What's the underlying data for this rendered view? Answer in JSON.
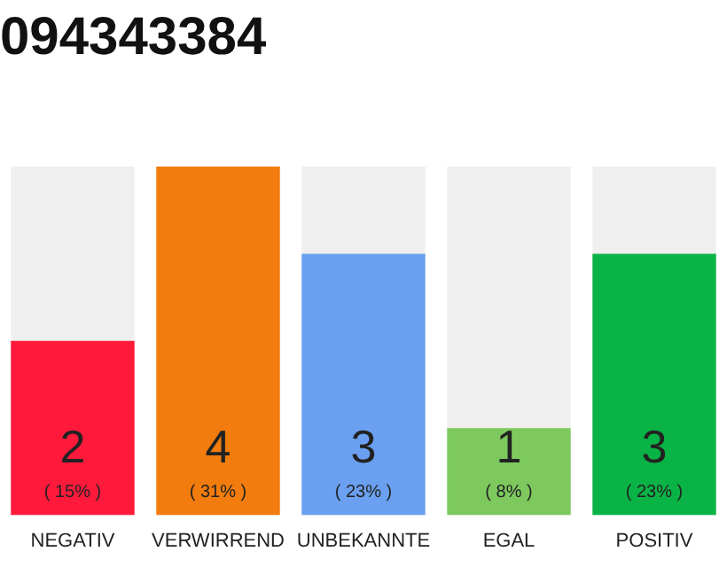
{
  "chart_data": {
    "type": "bar",
    "title": "094343384",
    "categories": [
      "NEGATIV",
      "VERWIRREND",
      "UNBEKANNTE",
      "EGAL",
      "POSITIV"
    ],
    "values": [
      2,
      4,
      3,
      1,
      3
    ],
    "colors": [
      "#ff1a3c",
      "#f27c0d",
      "#6aa0ef",
      "#7dc95e",
      "#0ab345"
    ],
    "ylim": [
      0,
      4
    ],
    "tick_labels": "x",
    "grid": false,
    "legend": false,
    "data_labels": true,
    "annotations": [
      "( 15% )",
      "( 31% )",
      "( 23% )",
      "( 8% )",
      "( 23% )"
    ]
  }
}
